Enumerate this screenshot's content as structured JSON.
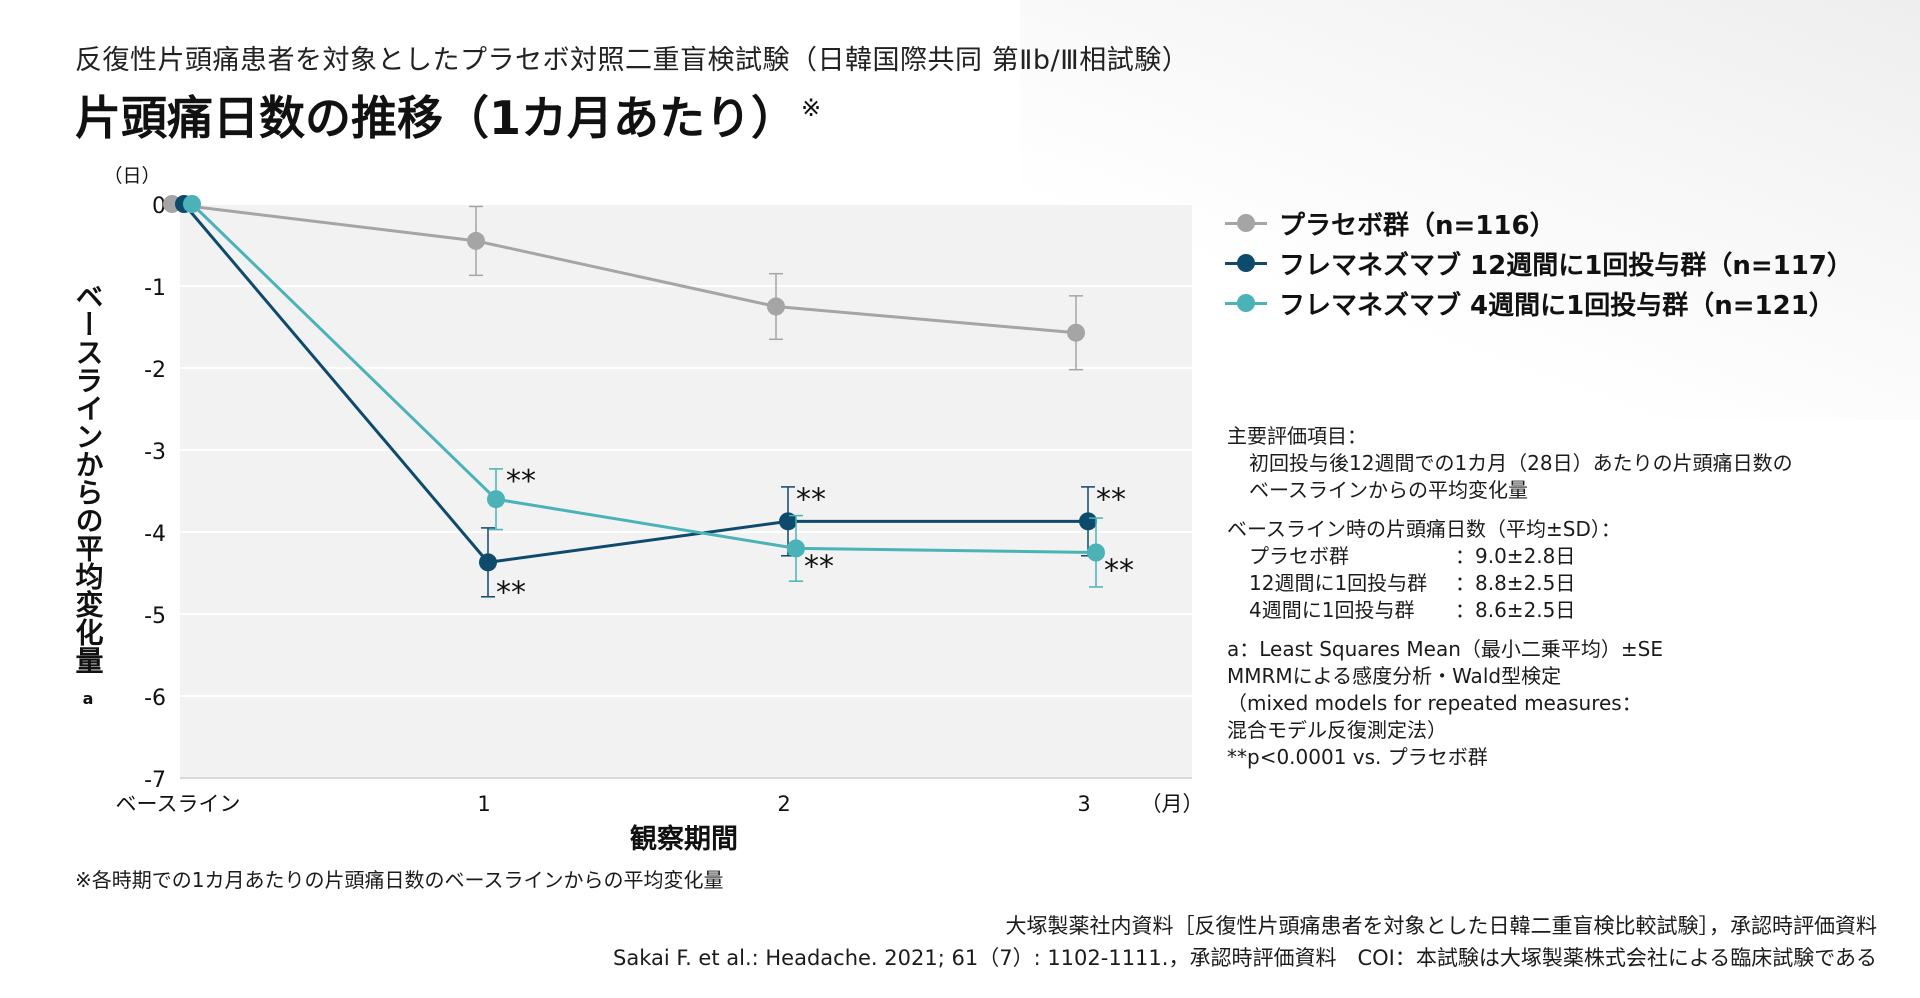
{
  "header": {
    "subtitle": "反復性片頭痛患者を対象としたプラセボ対照二重盲検試験（日韓国際共同 第Ⅱb/Ⅲ相試験）",
    "title": "片頭痛日数の推移（1カ月あたり）",
    "title_mark": "※"
  },
  "chart_data": {
    "type": "line",
    "y_unit_label": "（日）",
    "ylabel": "ベースラインからの平均変化量",
    "ylabel_sub": "a",
    "xlabel": "観察期間",
    "x_unit_label": "（月）",
    "categories": [
      "ベースライン",
      "1",
      "2",
      "3"
    ],
    "ylim": [
      -7,
      0
    ],
    "yticks": [
      0,
      -1,
      -2,
      -3,
      -4,
      -5,
      -6,
      -7
    ],
    "grid": true,
    "legend_position": "right",
    "series": [
      {
        "name": "プラセボ群（n=116）",
        "color": "#a5a5a5",
        "values": [
          0,
          -0.45,
          -1.25,
          -1.57
        ],
        "errors": [
          0,
          0.42,
          0.4,
          0.45
        ],
        "annotations": [
          "",
          "",
          "",
          ""
        ]
      },
      {
        "name": "フレマネズマブ 12週間に1回投与群（n=117）",
        "color": "#0e4a6b",
        "values": [
          0,
          -4.37,
          -3.87,
          -3.87
        ],
        "errors": [
          0,
          0.42,
          0.42,
          0.42
        ],
        "annotations": [
          "",
          "**",
          "**",
          "**"
        ]
      },
      {
        "name": "フレマネズマブ 4週間に1回投与群（n=121）",
        "color": "#4bb3b8",
        "values": [
          0,
          -3.6,
          -4.2,
          -4.25
        ],
        "errors": [
          0,
          0.37,
          0.4,
          0.42
        ],
        "annotations": [
          "",
          "**",
          "**",
          "**"
        ]
      }
    ]
  },
  "notes": {
    "primary_endpoint_label": "主要評価項目：",
    "primary_endpoint_line1": "初回投与後12週間での1カ月（28日）あたりの片頭痛日数の",
    "primary_endpoint_line2": "ベースラインからの平均変化量",
    "baseline_label": "ベースライン時の片頭痛日数（平均±SD）：",
    "baseline_rows": [
      {
        "name": "プラセボ群",
        "value": "：9.0±2.8日"
      },
      {
        "name": "12週間に1回投与群",
        "value": "：8.8±2.5日"
      },
      {
        "name": "4週間に1回投与群",
        "value": "：8.6±2.5日"
      }
    ],
    "method_line1": "a：Least Squares Mean（最小二乗平均）±SE",
    "method_line2": "MMRMによる感度分析・Wald型検定",
    "method_line3": "（mixed models for repeated measures：",
    "method_line4": "混合モデル反復測定法）",
    "method_line5": "**p<0.0001 vs. プラセボ群"
  },
  "footnote": "※各時期での1カ月あたりの片頭痛日数のベースラインからの平均変化量",
  "source_line1": "大塚製薬社内資料［反復性片頭痛患者を対象とした日韓二重盲検比較試験］，承認時評価資料",
  "source_line2": "Sakai F. et al.: Headache. 2021; 61（7）: 1102-1111.，承認時評価資料　COI：本試験は大塚製薬株式会社による臨床試験である",
  "colors": {
    "plot_background": "#f2f2f2",
    "gridline": "#ffffff",
    "placebo": "#a5a5a5",
    "q12w": "#0e4a6b",
    "q4w": "#4bb3b8"
  }
}
